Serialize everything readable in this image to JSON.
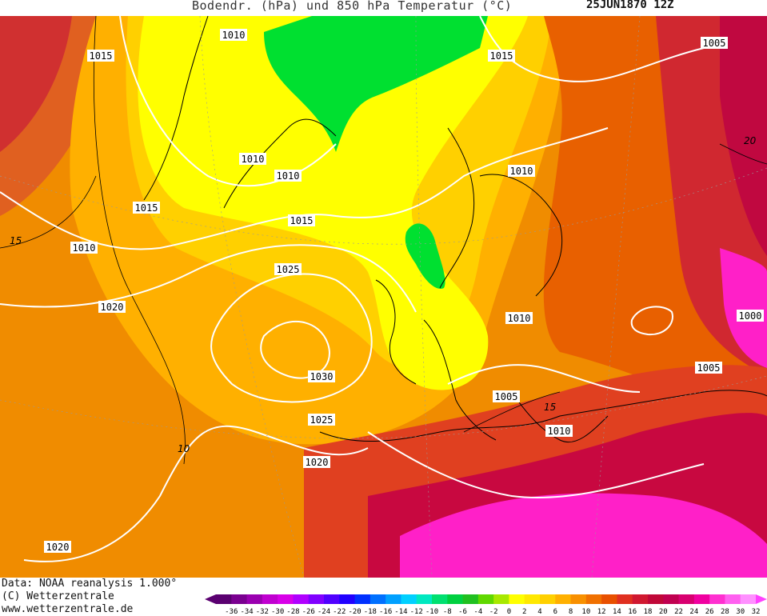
{
  "header": {
    "title": "Bodendr. (hPa) und 850 hPa Temperatur (°C)",
    "date": "25JUN1870 12Z"
  },
  "footer": {
    "source": "Data: NOAA reanalysis 1.000°",
    "copyright": "(C) Wetterzentrale",
    "url": "www.wetterzentrale.de"
  },
  "pressure_labels": [
    "1010",
    "1015",
    "1015",
    "1005",
    "1010",
    "1010",
    "1010",
    "1015",
    "1015",
    "1025",
    "1020",
    "1010",
    "1030",
    "1025",
    "1005",
    "1010",
    "1005",
    "1000",
    "1020",
    "1010",
    "1020"
  ],
  "temperature_labels": [
    "15",
    "15",
    "10",
    "20"
  ],
  "scale": {
    "ticks": [
      "-36",
      "-34",
      "-32",
      "-30",
      "-28",
      "-26",
      "-24",
      "-22",
      "-20",
      "-18",
      "-16",
      "-14",
      "-12",
      "-10",
      "-8",
      "-6",
      "-4",
      "-2",
      "0",
      "2",
      "4",
      "6",
      "8",
      "10",
      "12",
      "14",
      "16",
      "18",
      "20",
      "22",
      "24",
      "26",
      "28",
      "30",
      "32"
    ],
    "colors": [
      "#5a0070",
      "#7a0090",
      "#9a00b0",
      "#c000d0",
      "#d800e8",
      "#b000ff",
      "#8000ff",
      "#5000ff",
      "#2000ff",
      "#0030ff",
      "#0070ff",
      "#00a0ff",
      "#00d0ff",
      "#00e8c0",
      "#00e070",
      "#00d040",
      "#20c020",
      "#60d800",
      "#a8e800",
      "#ffff00",
      "#ffe800",
      "#ffd000",
      "#ffb000",
      "#f89000",
      "#f07000",
      "#e85000",
      "#e03020",
      "#d01830",
      "#c00838",
      "#c00050",
      "#d80070",
      "#f000a0",
      "#ff30d0",
      "#ff60f0",
      "#ff90ff"
    ],
    "arrow_left_color": "#5a0070",
    "arrow_right_color": "#ff40ff"
  },
  "colors": {
    "green_region": "#00e030",
    "yellow": "#ffff00",
    "orange": "#f08c00",
    "dark_orange": "#e86000",
    "red": "#d02830",
    "magenta": "#ff20c8",
    "isobar": "#ffffff",
    "isotherm": "#000000"
  }
}
